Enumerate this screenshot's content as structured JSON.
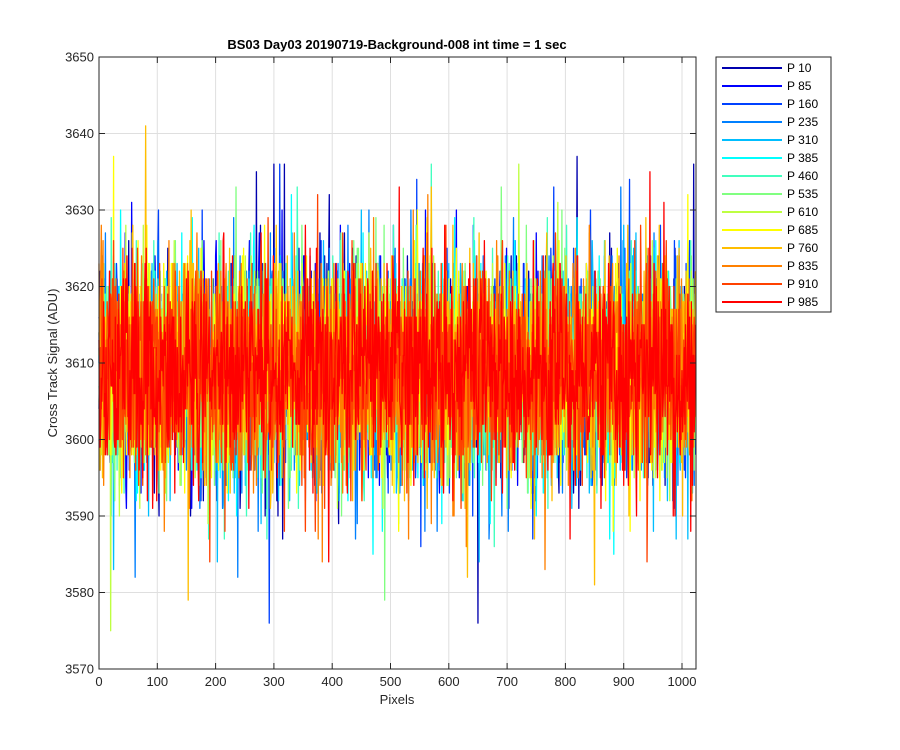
{
  "chart_data": {
    "type": "line",
    "title": "BS03 Day03 20190719-Background-008 int time = 1 sec",
    "xlabel": "Pixels",
    "ylabel": "Cross Track Signal (ADU)",
    "xlim": [
      0,
      1024
    ],
    "ylim": [
      3570,
      3650
    ],
    "xticks": [
      0,
      100,
      200,
      300,
      400,
      500,
      600,
      700,
      800,
      900,
      1000
    ],
    "yticks": [
      3570,
      3580,
      3590,
      3600,
      3610,
      3620,
      3630,
      3640,
      3650
    ],
    "grid": true,
    "legend_location": "outside-top-right",
    "n_points_per_series": 1024,
    "series_mean": 3609,
    "series_std": 7,
    "series": [
      {
        "name": "P 10",
        "color": "#0000ae",
        "notable_points": [
          [
            270,
            3635
          ],
          [
            300,
            3636
          ],
          [
            318,
            3636
          ],
          [
            395,
            3632
          ],
          [
            650,
            3576
          ],
          [
            820,
            3637
          ],
          [
            1020,
            3636
          ]
        ]
      },
      {
        "name": "P 85",
        "color": "#0000ff",
        "notable_points": [
          [
            45,
            3627
          ],
          [
            180,
            3626
          ],
          [
            560,
            3630
          ]
        ]
      },
      {
        "name": "P 160",
        "color": "#0041ff",
        "notable_points": [
          [
            292,
            3576
          ],
          [
            310,
            3636
          ],
          [
            545,
            3634
          ],
          [
            910,
            3634
          ]
        ]
      },
      {
        "name": "P 235",
        "color": "#0080ff",
        "notable_points": [
          [
            62,
            3582
          ],
          [
            238,
            3582
          ],
          [
            580,
            3588
          ]
        ]
      },
      {
        "name": "P 310",
        "color": "#00beff",
        "notable_points": [
          [
            25,
            3583
          ],
          [
            450,
            3630
          ],
          [
            990,
            3587
          ]
        ]
      },
      {
        "name": "P 385",
        "color": "#00ffff",
        "notable_points": [
          [
            330,
            3632
          ],
          [
            470,
            3585
          ]
        ]
      },
      {
        "name": "P 460",
        "color": "#41ffbe",
        "notable_points": [
          [
            340,
            3633
          ],
          [
            570,
            3636
          ]
        ]
      },
      {
        "name": "P 535",
        "color": "#80ff80",
        "notable_points": [
          [
            235,
            3633
          ],
          [
            490,
            3579
          ],
          [
            690,
            3633
          ]
        ]
      },
      {
        "name": "P 610",
        "color": "#beff41",
        "notable_points": [
          [
            20,
            3575
          ],
          [
            720,
            3636
          ]
        ]
      },
      {
        "name": "P 685",
        "color": "#ffff00",
        "notable_points": [
          [
            25,
            3637
          ],
          [
            1010,
            3632
          ]
        ]
      },
      {
        "name": "P 760",
        "color": "#ffbe00",
        "notable_points": [
          [
            80,
            3641
          ],
          [
            153,
            3579
          ],
          [
            632,
            3582
          ],
          [
            850,
            3581
          ]
        ]
      },
      {
        "name": "P 835",
        "color": "#ff8000",
        "notable_points": [
          [
            765,
            3583
          ]
        ]
      },
      {
        "name": "P 910",
        "color": "#ff4100",
        "notable_points": [
          [
            290,
            3629
          ],
          [
            595,
            3628
          ]
        ]
      },
      {
        "name": "P 985",
        "color": "#ff0000",
        "notable_points": [
          [
            515,
            3633
          ],
          [
            945,
            3635
          ]
        ]
      }
    ]
  }
}
